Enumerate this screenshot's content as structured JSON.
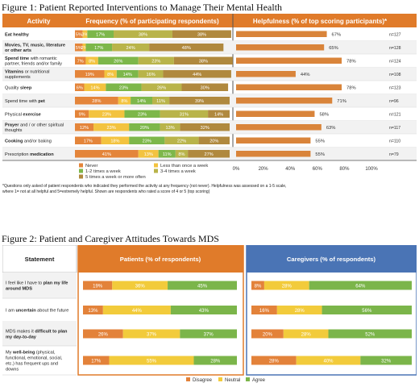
{
  "colors": {
    "header_orange": "#E07B2A",
    "header_blue": "#4A74B5",
    "never": "#E4853A",
    "less_once_week": "#F3C33F",
    "one_two_week": "#7DB74A",
    "three_four_week": "#B9B44A",
    "five_more_week": "#B0893E",
    "helpfulness_bar": "#D9843A",
    "disagree": "#E3823A",
    "neutral": "#F2CB3B",
    "agree": "#7BB54A",
    "row_alt": "#F2F2F2"
  },
  "figure1": {
    "caption": "Figure 1: Patient Reported Interventions to Manage Their Mental Health",
    "headers": {
      "activity": "Activity",
      "frequency": "Frequency (% of participating respondents)",
      "helpfulness": "Helpfulness (% of top scoring participants)*"
    },
    "footnote_line1": "*Questions only asked of patient respondents who indicated they performed the activity at any frequency (not never). Helpfulness was assessed on a 1-5 scale,",
    "footnote_line2": "where 1= not at all helpful and 5=extremely helpful. Shown are respondents who rated a score of 4 or 5 (top scoring)"
  },
  "figure2": {
    "caption": "Figure 2: Patient and Caregiver Attitudes Towards MDS",
    "headers": {
      "statement": "Statement",
      "patients": "Patients (% of respondents)",
      "caregivers": "Caregivers (% of respondents)"
    }
  },
  "chart_data": [
    {
      "type": "bar",
      "stacked": true,
      "orientation": "horizontal",
      "title": "Frequency (% of participating respondents)",
      "categories": [
        "Eat healthy",
        "Movies, TV, music, literature or other arts",
        "Spend time with romantic partner, friends and/or family",
        "Vitamins or nutritional supplements",
        "Quality sleep",
        "Spend time with pet",
        "Physical exercise",
        "Prayer and / or other spiritual thoughts",
        "Cooking and/or baking",
        "Prescription medication"
      ],
      "series": [
        {
          "name": "Never",
          "values": [
            5,
            5,
            7,
            19,
            6,
            28,
            9,
            12,
            17,
            41
          ]
        },
        {
          "name": "Less than once a week",
          "values": [
            3,
            2,
            8,
            8,
            14,
            8,
            23,
            23,
            18,
            13
          ]
        },
        {
          "name": "1-2 times a week",
          "values": [
            17,
            17,
            26,
            14,
            23,
            14,
            23,
            20,
            23,
            11
          ]
        },
        {
          "name": "3-4 times a week",
          "values": [
            38,
            24,
            23,
            16,
            26,
            11,
            31,
            13,
            22,
            8
          ]
        },
        {
          "name": "5 times a week or more often",
          "values": [
            38,
            48,
            38,
            44,
            30,
            39,
            14,
            32,
            20,
            27
          ]
        }
      ],
      "labels": [
        [
          "5%",
          "3%",
          "17%",
          "38%",
          "38%"
        ],
        [
          "5%",
          "2%",
          "17%",
          "24%",
          "48%"
        ],
        [
          "7%",
          "8%",
          "26%",
          "23%",
          "38%"
        ],
        [
          "19%",
          "8%",
          "14%",
          "16%",
          "44%"
        ],
        [
          "6%",
          "14%",
          "23%",
          "26%",
          "30%"
        ],
        [
          "28%",
          "8%",
          "14%",
          "11%",
          "39%"
        ],
        [
          "9%",
          "23%",
          "23%",
          "31%",
          "14%"
        ],
        [
          "12%",
          "23%",
          "20%",
          "13%",
          "32%"
        ],
        [
          "17%",
          "18%",
          "23%",
          "22%",
          "20%"
        ],
        [
          "41%",
          "13%",
          "11%",
          "8%",
          "27%"
        ]
      ],
      "xlim": [
        0,
        100
      ]
    },
    {
      "type": "bar",
      "orientation": "horizontal",
      "title": "Helpfulness (% of top scoring participants)*",
      "categories": [
        "Eat healthy",
        "Movies, TV, music, literature or other arts",
        "Spend time with romantic partner, friends and/or family",
        "Vitamins or nutritional supplements",
        "Quality sleep",
        "Spend time with pet",
        "Physical exercise",
        "Prayer and / or other spiritual thoughts",
        "Cooking and/or baking",
        "Prescription medication"
      ],
      "values": [
        67,
        65,
        78,
        44,
        78,
        71,
        58,
        63,
        55,
        55
      ],
      "value_labels": [
        "67%",
        "65%",
        "78%",
        "44%",
        "78%",
        "71%",
        "58%",
        "63%",
        "55%",
        "55%"
      ],
      "n_labels": [
        "n=127",
        "n=128",
        "n=124",
        "n=108",
        "n=123",
        "n=96",
        "n=121",
        "n=117",
        "n=110",
        "n=79"
      ],
      "xlim": [
        0,
        100
      ],
      "xticks": [
        "0%",
        "20%",
        "40%",
        "60%",
        "80%",
        "100%"
      ]
    },
    {
      "type": "bar",
      "stacked": true,
      "orientation": "horizontal",
      "title": "Patients (% of respondents)",
      "categories": [
        "I feel like I have to plan my life around MDS",
        "I am uncertain about the future",
        "MDS makes it difficult to plan my day-to-day",
        "My well-being (physical, functional, emotional, social, etc.) has frequent ups and downs"
      ],
      "series": [
        {
          "name": "Disagree",
          "values": [
            19,
            13,
            26,
            17
          ]
        },
        {
          "name": "Neutral",
          "values": [
            36,
            44,
            37,
            55
          ]
        },
        {
          "name": "Agree",
          "values": [
            45,
            43,
            37,
            28
          ]
        }
      ],
      "xlim": [
        0,
        100
      ]
    },
    {
      "type": "bar",
      "stacked": true,
      "orientation": "horizontal",
      "title": "Caregivers (% of respondents)",
      "categories": [
        "I feel like I have to plan my life around MDS",
        "I am uncertain about the future",
        "MDS makes it difficult to plan my day-to-day",
        "My well-being (physical, functional, emotional, social, etc.) has frequent ups and downs"
      ],
      "series": [
        {
          "name": "Disagree",
          "values": [
            8,
            16,
            20,
            28
          ]
        },
        {
          "name": "Neutral",
          "values": [
            28,
            28,
            28,
            40
          ]
        },
        {
          "name": "Agree",
          "values": [
            64,
            56,
            52,
            32
          ]
        }
      ],
      "xlim": [
        0,
        100
      ]
    }
  ],
  "fig1_rows": [
    {
      "lines": [
        [
          {
            "t": "Eat healthy",
            "b": true
          }
        ]
      ]
    },
    {
      "lines": [
        [
          {
            "t": "Movies, TV, music, literature",
            "b": true
          }
        ],
        [
          {
            "t": "or other arts",
            "b": true
          }
        ]
      ]
    },
    {
      "lines": [
        [
          {
            "t": "Spend time",
            "b": true
          },
          {
            "t": " with romantic",
            "b": false
          }
        ],
        [
          {
            "t": "partner, friends and/or family",
            "b": false
          }
        ]
      ]
    },
    {
      "lines": [
        [
          {
            "t": "Vitamins",
            "b": true
          },
          {
            "t": " or nutritional",
            "b": false
          }
        ],
        [
          {
            "t": "supplements",
            "b": false
          }
        ]
      ]
    },
    {
      "lines": [
        [
          {
            "t": "Quality ",
            "b": false
          },
          {
            "t": "sleep",
            "b": true
          }
        ]
      ]
    },
    {
      "lines": [
        [
          {
            "t": "Spend time with ",
            "b": false
          },
          {
            "t": "pet",
            "b": true
          }
        ]
      ]
    },
    {
      "lines": [
        [
          {
            "t": "Physical ",
            "b": false
          },
          {
            "t": "exercise",
            "b": true
          }
        ]
      ]
    },
    {
      "lines": [
        [
          {
            "t": "Prayer",
            "b": true
          },
          {
            "t": " and / or other spiritual",
            "b": false
          }
        ],
        [
          {
            "t": "thoughts",
            "b": false
          }
        ]
      ]
    },
    {
      "lines": [
        [
          {
            "t": "Cooking",
            "b": true
          },
          {
            "t": " and/or baking",
            "b": false
          }
        ]
      ]
    },
    {
      "lines": [
        [
          {
            "t": "Prescription ",
            "b": false
          },
          {
            "t": "medication",
            "b": true
          }
        ]
      ]
    }
  ],
  "fig2_rows": [
    {
      "lines": [
        [
          {
            "t": "I feel like I have to ",
            "b": false
          },
          {
            "t": "plan my life",
            "b": true
          }
        ],
        [
          {
            "t": "around MDS",
            "b": true
          }
        ]
      ]
    },
    {
      "lines": [
        [
          {
            "t": "I am ",
            "b": false
          },
          {
            "t": "uncertain",
            "b": true
          },
          {
            "t": " about the future",
            "b": false
          }
        ]
      ]
    },
    {
      "lines": [
        [
          {
            "t": "MDS makes it ",
            "b": false
          },
          {
            "t": "difficult to plan",
            "b": true
          }
        ],
        [
          {
            "t": "my day-to-day",
            "b": true
          }
        ]
      ]
    },
    {
      "lines": [
        [
          {
            "t": "My ",
            "b": false
          },
          {
            "t": "well-being",
            "b": true
          },
          {
            "t": " (physical,",
            "b": false
          }
        ],
        [
          {
            "t": "functional, emotional, social,",
            "b": false
          }
        ],
        [
          {
            "t": "etc.) has frequent ups and",
            "b": false
          }
        ],
        [
          {
            "t": "downs",
            "b": false
          }
        ]
      ]
    }
  ],
  "fig2_labels": {
    "patients": [
      [
        "19%",
        "36%",
        "45%"
      ],
      [
        "13%",
        "44%",
        "43%"
      ],
      [
        "26%",
        "37%",
        "37%"
      ],
      [
        "17%",
        "55%",
        "28%"
      ]
    ],
    "caregivers": [
      [
        "8%",
        "28%",
        "64%"
      ],
      [
        "16%",
        "28%",
        "56%"
      ],
      [
        "20%",
        "28%",
        "52%"
      ],
      [
        "28%",
        "40%",
        "32%"
      ]
    ]
  }
}
